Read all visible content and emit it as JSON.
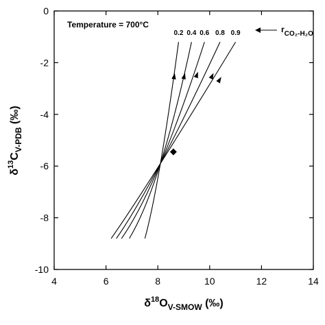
{
  "chart_data": {
    "type": "line",
    "annotation": "Temperature = 700°C",
    "xlabel": {
      "main": "δ",
      "sup": "18",
      "mid": "O",
      "sub": "V-SMOW",
      "unit": " (‰)"
    },
    "ylabel": {
      "main": "δ",
      "sup": "13",
      "mid": "C",
      "sub": "V-PDB",
      "unit": " (‰)"
    },
    "xlim": [
      4,
      14
    ],
    "ylim": [
      -10,
      0
    ],
    "x_ticks": [
      4,
      6,
      8,
      10,
      12,
      14
    ],
    "y_ticks": [
      0,
      -2,
      -4,
      -6,
      -8,
      -10
    ],
    "x_tick_labels": [
      "4",
      "6",
      "8",
      "10",
      "12",
      "14"
    ],
    "y_tick_labels": [
      "0",
      "-2",
      "-4",
      "-6",
      "-8",
      "-10"
    ],
    "grid": false,
    "ratio_label": {
      "r": "r",
      "sub": "CO₂-H₂O"
    },
    "series": [
      {
        "name": "0.2",
        "points": [
          [
            7.5,
            -8.8
          ],
          [
            8.1,
            -5.9
          ],
          [
            8.8,
            -1.2
          ]
        ],
        "arrow_at": [
          8.65,
          -2.4
        ]
      },
      {
        "name": "0.4",
        "points": [
          [
            6.9,
            -8.8
          ],
          [
            8.1,
            -5.9
          ],
          [
            9.3,
            -1.2
          ]
        ],
        "arrow_at": [
          9.05,
          -2.4
        ]
      },
      {
        "name": "0.6",
        "points": [
          [
            6.6,
            -8.8
          ],
          [
            8.1,
            -5.9
          ],
          [
            9.8,
            -1.2
          ]
        ],
        "arrow_at": [
          9.55,
          -2.35
        ]
      },
      {
        "name": "0.8",
        "points": [
          [
            6.4,
            -8.8
          ],
          [
            8.1,
            -5.9
          ],
          [
            10.4,
            -1.2
          ]
        ],
        "arrow_at": [
          10.15,
          -2.4
        ]
      },
      {
        "name": "0.9",
        "points": [
          [
            6.2,
            -8.8
          ],
          [
            8.1,
            -5.9
          ],
          [
            11.0,
            -1.2
          ]
        ],
        "arrow_at": [
          10.45,
          -2.55
        ]
      }
    ],
    "marker": {
      "shape": "diamond",
      "x": 8.6,
      "y": -5.45
    }
  }
}
